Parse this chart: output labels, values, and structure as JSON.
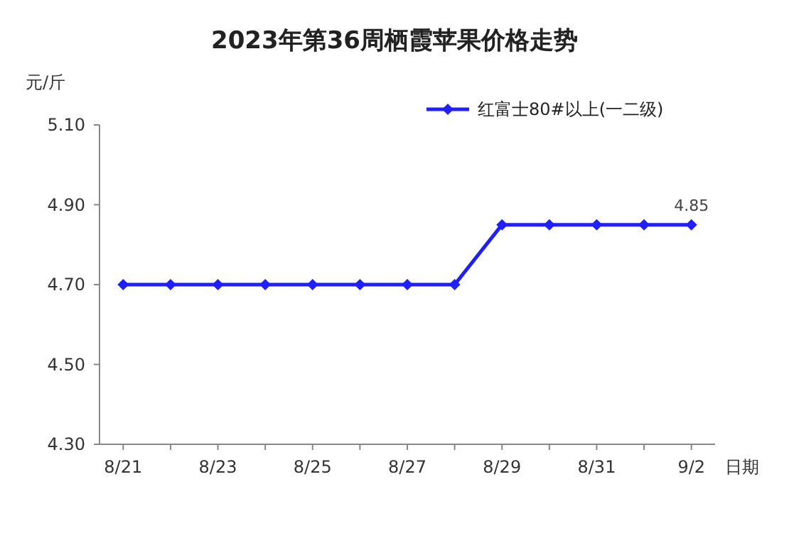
{
  "chart_data": {
    "type": "line",
    "title": "2023年第36周栖霞苹果价格走势",
    "ylabel": "元/斤",
    "xlabel": "日期",
    "categories": [
      "8/21",
      null,
      "8/23",
      null,
      "8/25",
      null,
      "8/27",
      null,
      "8/29",
      null,
      "8/31",
      null,
      "9/2"
    ],
    "series": [
      {
        "name": "红富士80#以上(一二级)",
        "color": "#1f1fff",
        "values": [
          4.7,
          4.7,
          4.7,
          4.7,
          4.7,
          4.7,
          4.7,
          4.7,
          4.85,
          4.85,
          4.85,
          4.85,
          4.85
        ],
        "value_labels": [
          null,
          null,
          null,
          null,
          null,
          null,
          null,
          null,
          null,
          null,
          null,
          null,
          "4.85"
        ]
      }
    ],
    "ylim": [
      4.3,
      5.1
    ],
    "yticks": [
      {
        "value": 4.3,
        "label": "4.30"
      },
      {
        "value": 4.5,
        "label": "4.50"
      },
      {
        "value": 4.7,
        "label": "4.70"
      },
      {
        "value": 4.9,
        "label": "4.90"
      },
      {
        "value": 5.1,
        "label": "5.10"
      }
    ],
    "legend": "top right",
    "marker": "diamond",
    "line_style": "solid",
    "grid": false
  }
}
